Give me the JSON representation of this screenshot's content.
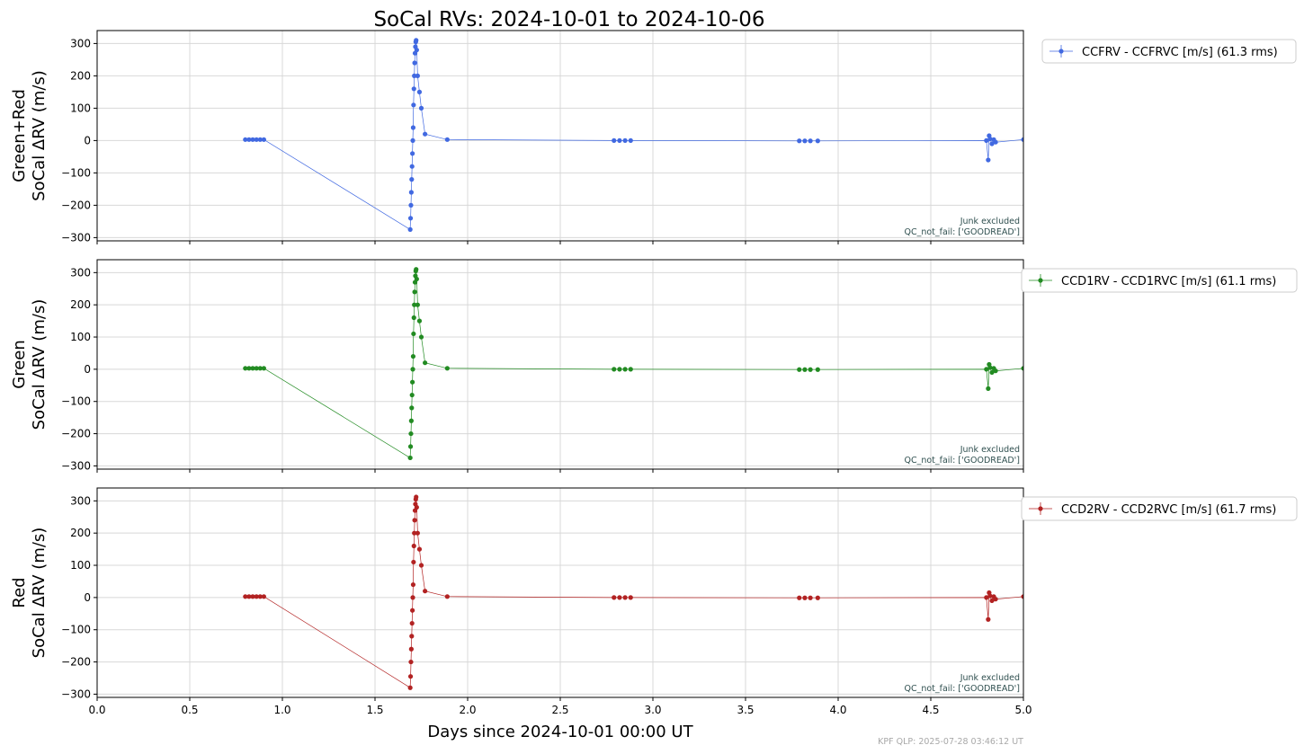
{
  "title": "SoCal RVs: 2024-10-01 to 2024-10-06",
  "xlabel": "Days since 2024-10-01 00:00 UT",
  "footer": "KPF QLP: 2025-07-28 03:46:12 UT",
  "chart_data": {
    "type": "line",
    "xlim": [
      0,
      5
    ],
    "x_ticks": [
      0.0,
      0.5,
      1.0,
      1.5,
      2.0,
      2.5,
      3.0,
      3.5,
      4.0,
      4.5,
      5.0
    ],
    "x_tick_labels": [
      "0.0",
      "0.5",
      "1.0",
      "1.5",
      "2.0",
      "2.5",
      "3.0",
      "3.5",
      "4.0",
      "4.5",
      "5.0"
    ],
    "grid": true,
    "panels": [
      {
        "ylabel": [
          "Green+Red",
          "SoCal ΔRV (m/s)"
        ],
        "ylim": [
          -310,
          340
        ],
        "y_ticks": [
          -300,
          -200,
          -100,
          0,
          100,
          200,
          300
        ],
        "y_tick_labels": [
          "−300",
          "−200",
          "−100",
          "0",
          "100",
          "200",
          "300"
        ],
        "annotation": [
          "Junk excluded",
          "QC_not_fail: ['GOODREAD']"
        ],
        "legend": "CCFRV - CCFRVC [m/s] (61.3 rms)",
        "legend_loc": "outside-upper-right",
        "color": "#4169e1",
        "x": [
          0.8,
          0.82,
          0.84,
          0.86,
          0.88,
          0.9,
          1.69,
          1.692,
          1.694,
          1.696,
          1.698,
          1.7,
          1.702,
          1.704,
          1.706,
          1.708,
          1.71,
          1.712,
          1.714,
          1.716,
          1.718,
          1.72,
          1.722,
          1.725,
          1.73,
          1.74,
          1.75,
          1.77,
          1.89,
          2.79,
          2.82,
          2.85,
          2.88,
          3.79,
          3.82,
          3.85,
          3.89,
          4.8,
          4.81,
          4.815,
          4.82,
          4.83,
          4.84,
          4.85,
          5.0
        ],
        "values": [
          3,
          3,
          3,
          3,
          3,
          3,
          -275,
          -240,
          -200,
          -160,
          -120,
          -80,
          -40,
          0,
          40,
          110,
          160,
          200,
          240,
          270,
          290,
          305,
          310,
          280,
          200,
          150,
          100,
          20,
          3,
          0,
          0,
          0,
          0,
          -1,
          -1,
          -1,
          -1,
          0,
          -60,
          15,
          5,
          -10,
          3,
          -5,
          3
        ]
      },
      {
        "ylabel": [
          "Green",
          "SoCal ΔRV (m/s)"
        ],
        "ylim": [
          -310,
          340
        ],
        "y_ticks": [
          -300,
          -200,
          -100,
          0,
          100,
          200,
          300
        ],
        "y_tick_labels": [
          "−300",
          "−200",
          "−100",
          "0",
          "100",
          "200",
          "300"
        ],
        "annotation": [
          "Junk excluded",
          "QC_not_fail: ['GOODREAD']"
        ],
        "legend": "CCD1RV - CCD1RVC [m/s] (61.1 rms)",
        "legend_loc": "outside-upper-right",
        "color": "#228b22",
        "x": [
          0.8,
          0.82,
          0.84,
          0.86,
          0.88,
          0.9,
          1.69,
          1.692,
          1.694,
          1.696,
          1.698,
          1.7,
          1.702,
          1.704,
          1.706,
          1.708,
          1.71,
          1.712,
          1.714,
          1.716,
          1.718,
          1.72,
          1.722,
          1.725,
          1.73,
          1.74,
          1.75,
          1.77,
          1.89,
          2.79,
          2.82,
          2.85,
          2.88,
          3.79,
          3.82,
          3.85,
          3.89,
          4.8,
          4.81,
          4.815,
          4.82,
          4.83,
          4.84,
          4.85,
          5.0
        ],
        "values": [
          3,
          3,
          3,
          3,
          3,
          3,
          -275,
          -240,
          -200,
          -160,
          -120,
          -80,
          -40,
          0,
          40,
          110,
          160,
          200,
          240,
          270,
          290,
          305,
          310,
          280,
          200,
          150,
          100,
          20,
          3,
          0,
          0,
          0,
          0,
          -1,
          -1,
          -1,
          -1,
          0,
          -60,
          15,
          5,
          -10,
          3,
          -5,
          3
        ]
      },
      {
        "ylabel": [
          "Red",
          "SoCal ΔRV (m/s)"
        ],
        "ylim": [
          -310,
          340
        ],
        "y_ticks": [
          -300,
          -200,
          -100,
          0,
          100,
          200,
          300
        ],
        "y_tick_labels": [
          "−300",
          "−200",
          "−100",
          "0",
          "100",
          "200",
          "300"
        ],
        "annotation": [
          "Junk excluded",
          "QC_not_fail: ['GOODREAD']"
        ],
        "legend": "CCD2RV - CCD2RVC [m/s] (61.7 rms)",
        "legend_loc": "outside-upper-right",
        "color": "#b22222",
        "x": [
          0.8,
          0.82,
          0.84,
          0.86,
          0.88,
          0.9,
          1.69,
          1.692,
          1.694,
          1.696,
          1.698,
          1.7,
          1.702,
          1.704,
          1.706,
          1.708,
          1.71,
          1.712,
          1.714,
          1.716,
          1.718,
          1.72,
          1.722,
          1.725,
          1.73,
          1.74,
          1.75,
          1.77,
          1.89,
          2.79,
          2.82,
          2.85,
          2.88,
          3.79,
          3.82,
          3.85,
          3.89,
          4.8,
          4.81,
          4.815,
          4.82,
          4.83,
          4.84,
          4.85,
          5.0
        ],
        "values": [
          3,
          3,
          3,
          3,
          3,
          3,
          -280,
          -245,
          -200,
          -160,
          -120,
          -80,
          -40,
          0,
          40,
          110,
          160,
          200,
          240,
          270,
          290,
          305,
          312,
          280,
          200,
          150,
          100,
          20,
          3,
          0,
          0,
          0,
          0,
          -1,
          -1,
          -1,
          -1,
          0,
          -68,
          15,
          5,
          -10,
          3,
          -5,
          3
        ]
      }
    ]
  }
}
